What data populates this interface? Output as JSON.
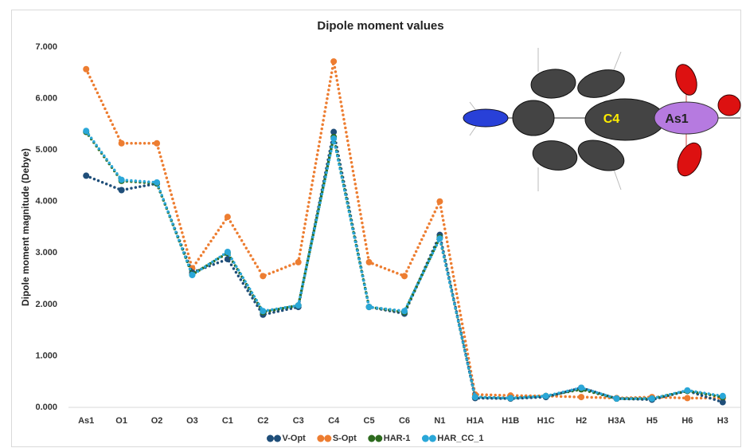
{
  "chart_data": {
    "type": "line",
    "title": "Dipole moment values",
    "y_label": "Dipole moment magnitude (Debye)",
    "categories": [
      "As1",
      "O1",
      "O2",
      "O3",
      "C1",
      "C2",
      "C3",
      "C4",
      "C5",
      "C6",
      "N1",
      "H1A",
      "H1B",
      "H1C",
      "H2",
      "H3A",
      "H5",
      "H6",
      "H3"
    ],
    "series": [
      {
        "name": "V-Opt",
        "color": "#1f4e79",
        "values": [
          4.5,
          4.22,
          4.35,
          2.62,
          2.88,
          1.8,
          1.95,
          5.35,
          1.95,
          1.82,
          3.35,
          0.18,
          0.17,
          0.2,
          0.38,
          0.17,
          0.15,
          0.32,
          0.1
        ]
      },
      {
        "name": "S-Opt",
        "color": "#ed7d31",
        "values": [
          6.57,
          5.13,
          5.13,
          2.7,
          3.7,
          2.55,
          2.82,
          6.72,
          2.82,
          2.55,
          4.0,
          0.25,
          0.23,
          0.22,
          0.2,
          0.18,
          0.2,
          0.18,
          0.18
        ]
      },
      {
        "name": "HAR-1",
        "color": "#2e6b1f",
        "values": [
          5.35,
          4.4,
          4.35,
          2.58,
          3.0,
          1.85,
          1.98,
          5.25,
          1.95,
          1.85,
          3.3,
          0.2,
          0.18,
          0.22,
          0.35,
          0.17,
          0.17,
          0.32,
          0.2
        ]
      },
      {
        "name": "HAR_CC_1",
        "color": "#2aa7d8",
        "values": [
          5.37,
          4.42,
          4.37,
          2.57,
          3.02,
          1.87,
          1.98,
          5.22,
          1.95,
          1.87,
          3.28,
          0.2,
          0.18,
          0.22,
          0.38,
          0.17,
          0.17,
          0.33,
          0.22
        ]
      }
    ],
    "draw_order": [
      1,
      0,
      2,
      3
    ],
    "ylim": [
      0,
      7
    ],
    "yticks": [
      {
        "value": 0,
        "label": "0.000"
      },
      {
        "value": 1,
        "label": "1.000"
      },
      {
        "value": 2,
        "label": "2.000"
      },
      {
        "value": 3,
        "label": "3.000"
      },
      {
        "value": 4,
        "label": "4.000"
      },
      {
        "value": 5,
        "label": "5.000"
      },
      {
        "value": 6,
        "label": "6.000"
      },
      {
        "value": 7,
        "label": "7.000"
      }
    ],
    "grid": false,
    "legend": "bottom",
    "annotations": [
      "C4",
      "As1"
    ]
  }
}
